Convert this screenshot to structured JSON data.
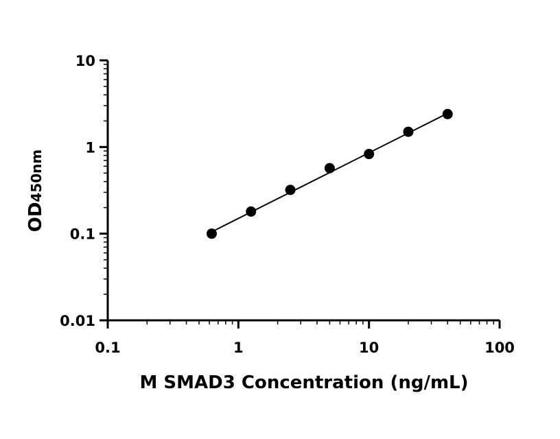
{
  "chart_data": {
    "type": "scatter",
    "xscale": "log",
    "yscale": "log",
    "xlim": [
      0.1,
      100
    ],
    "ylim": [
      0.01,
      10
    ],
    "xticks": [
      "0.1",
      "1",
      "10",
      "100"
    ],
    "yticks": [
      "0.01",
      "0.1",
      "1",
      "10"
    ],
    "xlabel": "M SMAD3 Concentration (ng/mL)",
    "ylabel_main": "OD",
    "ylabel_sub": "450nm",
    "grid": false,
    "legend": "none",
    "series": [
      {
        "x": [
          0.625,
          1.25,
          2.5,
          5,
          10,
          20,
          40
        ],
        "y": [
          0.1,
          0.18,
          0.32,
          0.57,
          0.83,
          1.5,
          2.4
        ]
      }
    ],
    "fit_line": {
      "x": [
        0.625,
        40
      ],
      "y": [
        0.105,
        2.45
      ]
    },
    "colors": {
      "marker": "#000000",
      "line": "#000000",
      "axis": "#000000"
    }
  }
}
